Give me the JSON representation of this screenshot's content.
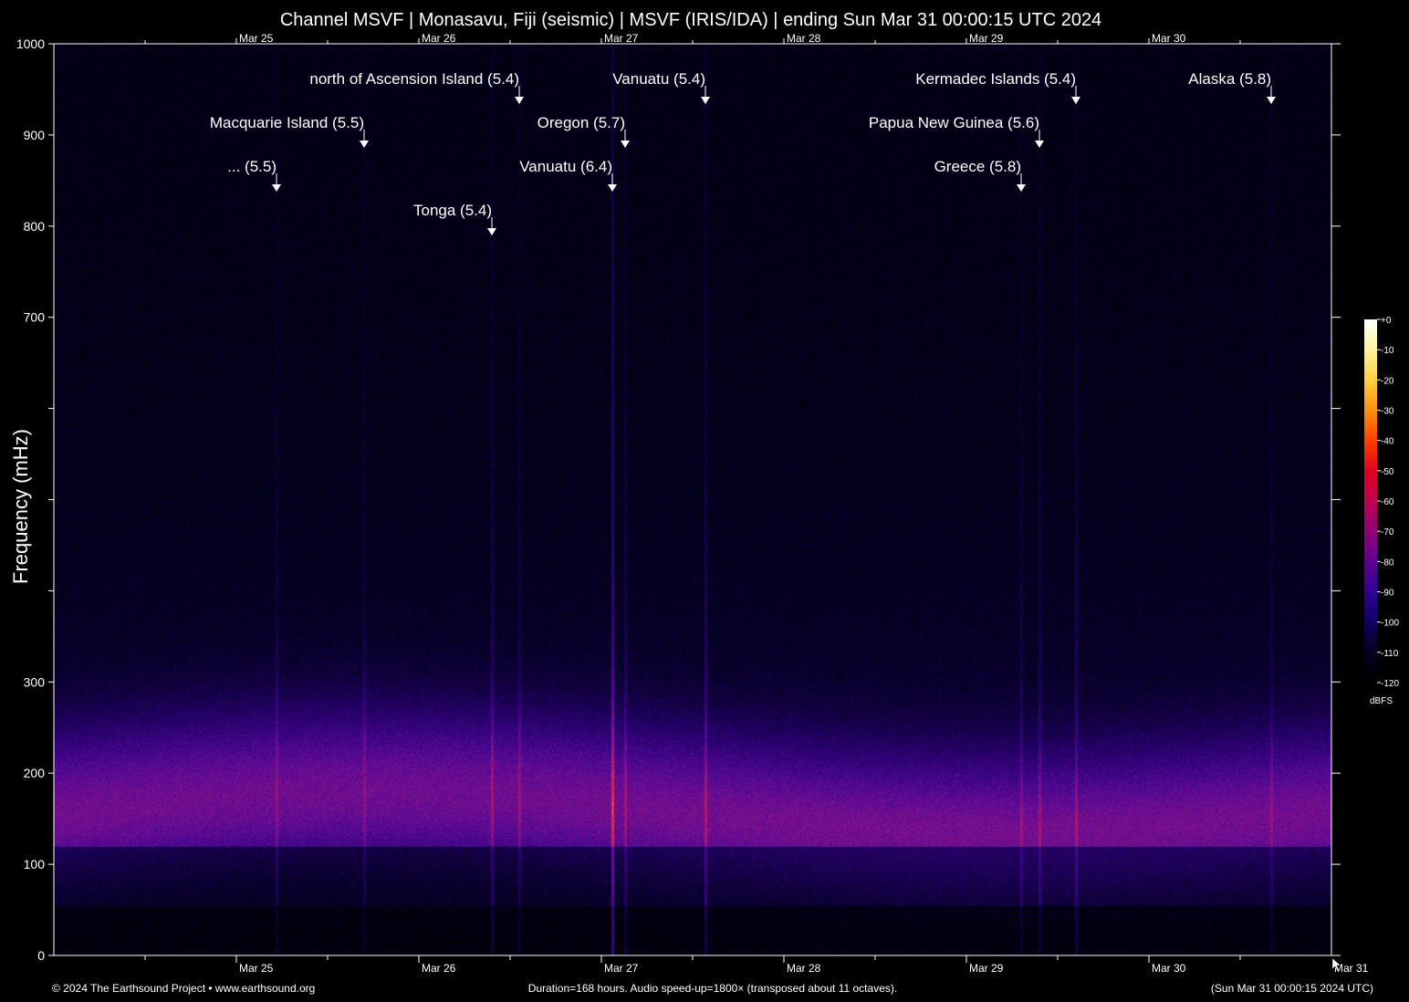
{
  "chart_data": {
    "type": "heatmap",
    "title": "Channel MSVF | Monasavu, Fiji (seismic) | MSVF (IRIS/IDA) | ending Sun Mar 31 00:00:15 UTC 2024",
    "ylabel": "Frequency (mHz)",
    "xlabel": "",
    "ylim": [
      0,
      1000
    ],
    "yticks": [
      0,
      100,
      200,
      300,
      400,
      500,
      600,
      700,
      800,
      900,
      1000
    ],
    "ytick_labels": [
      "0",
      "100",
      "200",
      "300",
      "",
      "",
      "",
      "700",
      "800",
      "900",
      "1000"
    ],
    "xlim_days": [
      0,
      7
    ],
    "date_ticks": [
      {
        "label": "Mar 25",
        "day": 1
      },
      {
        "label": "Mar 26",
        "day": 2
      },
      {
        "label": "Mar 27",
        "day": 3
      },
      {
        "label": "Mar 28",
        "day": 4
      },
      {
        "label": "Mar 29",
        "day": 5
      },
      {
        "label": "Mar 30",
        "day": 6
      },
      {
        "label": "Mar 31",
        "day": 7
      }
    ],
    "top_date_labels": [
      "Mar 25",
      "Mar 26",
      "Mar 27",
      "Mar 28",
      "Mar 29",
      "Mar 30"
    ],
    "events": [
      {
        "label": "north of Ascension Island (5.4)",
        "day": 2.55,
        "tier": 0,
        "strength": 0.35
      },
      {
        "label": "Vanuatu (5.4)",
        "day": 3.57,
        "tier": 0,
        "strength": 0.55
      },
      {
        "label": "Kermadec Islands (5.4)",
        "day": 5.6,
        "tier": 0,
        "strength": 0.45
      },
      {
        "label": "Alaska (5.8)",
        "day": 6.67,
        "tier": 0,
        "strength": 0.3
      },
      {
        "label": "Macquarie Island (5.5)",
        "day": 1.7,
        "tier": 1,
        "strength": 0.3
      },
      {
        "label": "Oregon (5.7)",
        "day": 3.13,
        "tier": 1,
        "strength": 0.45
      },
      {
        "label": "Papua New Guinea (5.6)",
        "day": 5.4,
        "tier": 1,
        "strength": 0.4
      },
      {
        "label": "... (5.5)",
        "day": 1.22,
        "tier": 2,
        "strength": 0.35
      },
      {
        "label": "Vanuatu (6.4)",
        "day": 3.06,
        "tier": 2,
        "strength": 1.0
      },
      {
        "label": "Greece (5.8)",
        "day": 5.3,
        "tier": 2,
        "strength": 0.35
      },
      {
        "label": "Tonga (5.4)",
        "day": 2.4,
        "tier": 3,
        "strength": 0.45
      }
    ],
    "colorbar": {
      "ticks": [
        "+0",
        "-10",
        "-20",
        "-30",
        "-40",
        "-50",
        "-60",
        "-70",
        "-80",
        "-90",
        "-100",
        "-110",
        "-120"
      ],
      "unit": "dBFS",
      "colors": [
        "#ffffff",
        "#fff2a0",
        "#ffd040",
        "#ff9010",
        "#ff4000",
        "#e00020",
        "#c00050",
        "#900078",
        "#600090",
        "#30009a",
        "#100060",
        "#040020",
        "#000000"
      ]
    }
  },
  "footer": {
    "left": "© 2024 The Earthsound Project • www.earthsound.org",
    "center": "Duration=168 hours. Audio speed-up=1800× (transposed about 11 octaves).",
    "right": "(Sun Mar 31 00:00:15 2024 UTC)"
  }
}
